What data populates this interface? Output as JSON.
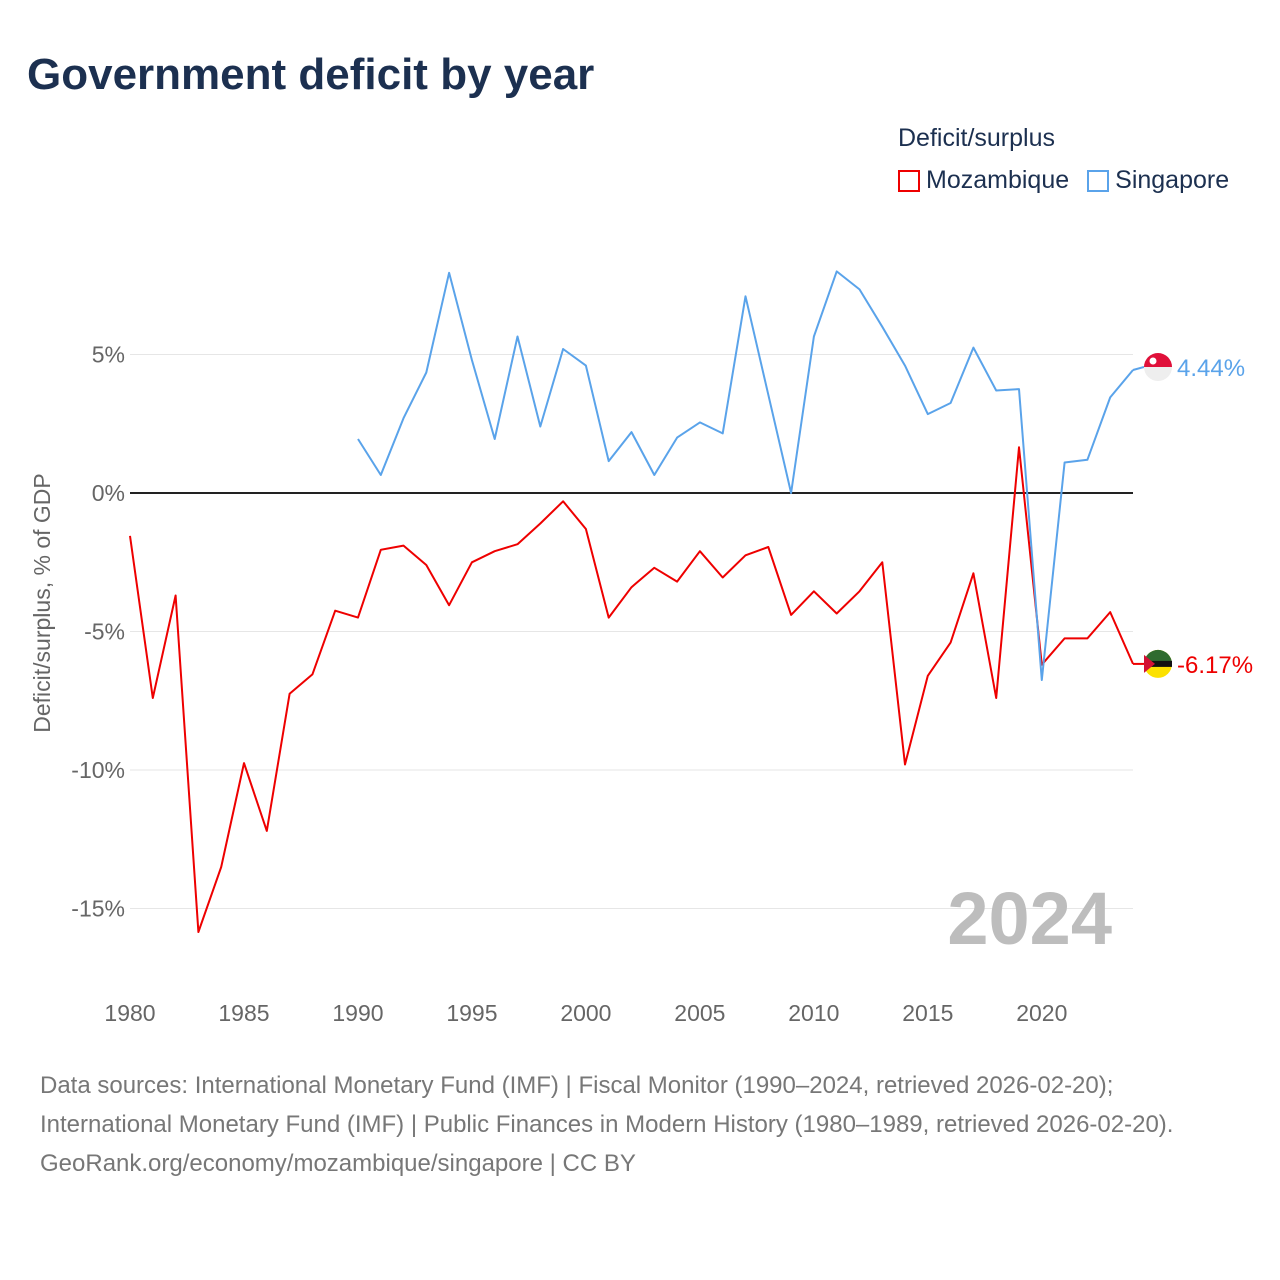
{
  "title": "Government deficit by year",
  "colors": {
    "mozambique": "#ee0000",
    "singapore": "#5aa3ea",
    "zero": "#222222",
    "grid": "#e6e6e6"
  },
  "chart_data": {
    "type": "line",
    "title": "Government deficit by year",
    "ylabel": "Deficit/surplus, % of GDP",
    "xlabel": "",
    "ylim": [
      -17,
      10
    ],
    "xlim": [
      1980,
      2024
    ],
    "x_ticks": [
      "1980",
      "1985",
      "1990",
      "1995",
      "2000",
      "2005",
      "2010",
      "2015",
      "2020"
    ],
    "y_ticks": [
      {
        "v": 5,
        "label": "5%"
      },
      {
        "v": 0,
        "label": "0%"
      },
      {
        "v": -5,
        "label": "-5%"
      },
      {
        "v": -10,
        "label": "-10%"
      },
      {
        "v": -15,
        "label": "-15%"
      }
    ],
    "legend_title": "Deficit/surplus",
    "legend_position": "top-right",
    "year_watermark": "2024",
    "series": [
      {
        "name": "Mozambique",
        "color": "#ee0000",
        "start": 1980,
        "end_label": "-6.17%",
        "values": [
          -1.55,
          -7.4,
          -3.7,
          -15.85,
          -13.5,
          -9.75,
          -12.2,
          -7.25,
          -6.55,
          -4.25,
          -4.5,
          -2.05,
          -1.9,
          -2.6,
          -4.05,
          -2.5,
          -2.1,
          -1.85,
          -1.1,
          -0.3,
          -1.3,
          -4.5,
          -3.4,
          -2.7,
          -3.2,
          -2.1,
          -3.05,
          -2.25,
          -1.95,
          -4.4,
          -3.55,
          -4.35,
          -3.55,
          -2.5,
          -9.8,
          -6.6,
          -5.4,
          -2.9,
          -7.4,
          1.65,
          -6.2,
          -5.25,
          -5.25,
          -4.3,
          -6.17
        ]
      },
      {
        "name": "Singapore",
        "color": "#5aa3ea",
        "start": 1990,
        "end_label": "4.44%",
        "values": [
          1.95,
          0.65,
          2.7,
          4.35,
          7.95,
          4.8,
          1.95,
          5.65,
          2.4,
          5.2,
          4.6,
          1.15,
          2.2,
          0.65,
          2.0,
          2.55,
          2.15,
          7.1,
          3.55,
          0.0,
          5.65,
          8.0,
          7.35,
          6.0,
          4.6,
          2.85,
          3.25,
          5.25,
          3.7,
          3.75,
          -6.75,
          1.1,
          1.2,
          3.45,
          4.44
        ]
      }
    ]
  },
  "footer": {
    "sources": "Data sources: International Monetary Fund (IMF) | Fiscal Monitor (1990–2024, retrieved 2026-02-20); International Monetary Fund (IMF) | Public Finances in Modern History (1980–1989, retrieved 2026-02-20).",
    "credit": "GeoRank.org/economy/mozambique/singapore | CC BY"
  }
}
